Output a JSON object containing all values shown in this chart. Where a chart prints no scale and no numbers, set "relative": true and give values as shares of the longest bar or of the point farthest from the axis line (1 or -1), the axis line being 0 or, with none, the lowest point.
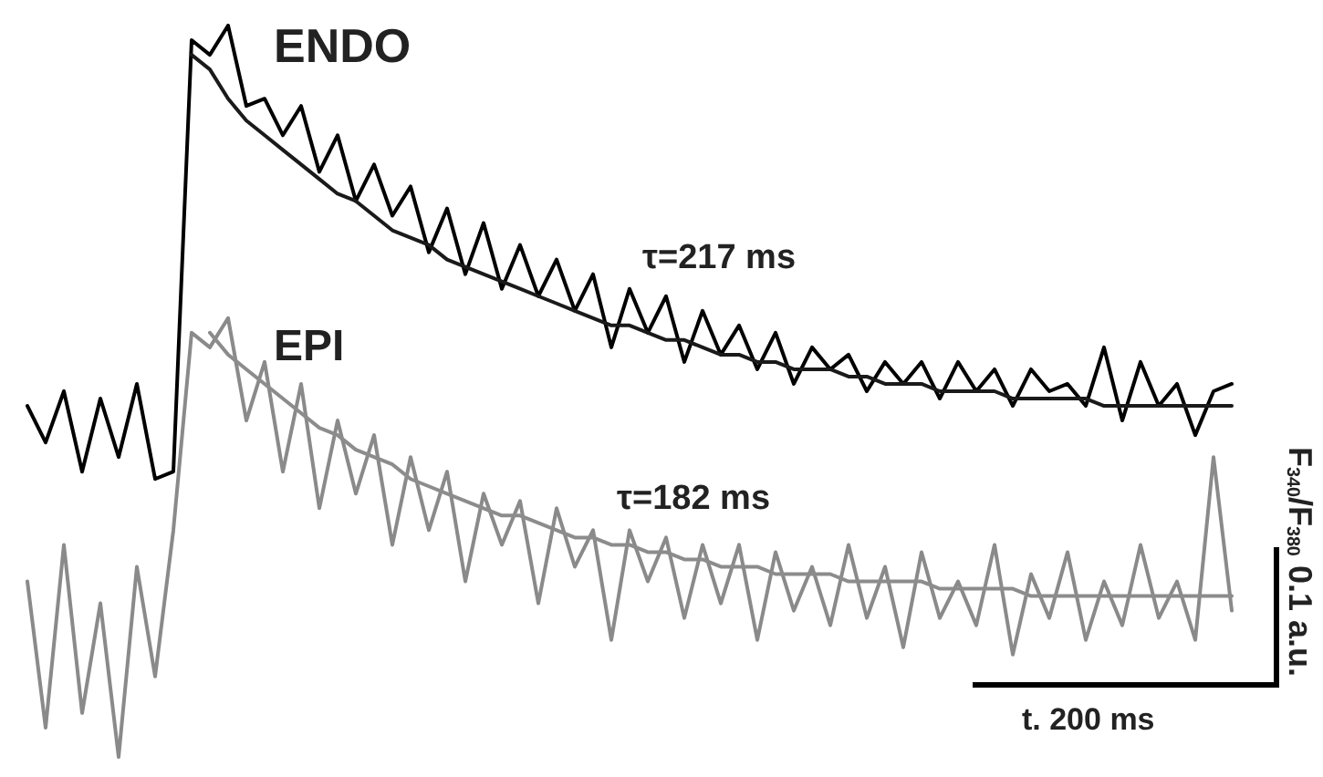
{
  "chart_data": {
    "type": "line",
    "relative": true,
    "marker": "none",
    "line_style": "solid",
    "categories": [
      null,
      null,
      null,
      null,
      null,
      null,
      null,
      null,
      null,
      null,
      null,
      null,
      null,
      null,
      null,
      null,
      null,
      null,
      null,
      null,
      null,
      null,
      null,
      null,
      null,
      null,
      null,
      null,
      null,
      null,
      null,
      null,
      null,
      null,
      null,
      null,
      null,
      null,
      null,
      null,
      null,
      null,
      null,
      null,
      null,
      null,
      null,
      null,
      null,
      null,
      null,
      null,
      null,
      null,
      null,
      null,
      null,
      null,
      null,
      null,
      null,
      null,
      null,
      null,
      null,
      null,
      null
    ],
    "series": [
      {
        "color": "#000000",
        "values": [
          0.48,
          0.43,
          0.5,
          0.39,
          0.49,
          0.41,
          0.51,
          0.38,
          0.39,
          0.98,
          0.96,
          1,
          0.89,
          0.9,
          0.85,
          0.89,
          0.8,
          0.85,
          0.76,
          0.81,
          0.74,
          0.78,
          0.69,
          0.75,
          0.66,
          0.73,
          0.64,
          0.7,
          0.63,
          0.68,
          0.61,
          0.66,
          0.56,
          0.64,
          0.58,
          0.63,
          0.54,
          0.61,
          0.55,
          0.59,
          0.53,
          0.58,
          0.51,
          0.56,
          0.53,
          0.55,
          0.5,
          0.54,
          0.51,
          0.54,
          0.49,
          0.54,
          0.5,
          0.53,
          0.48,
          0.53,
          0.5,
          0.51,
          0.48,
          0.56,
          0.46,
          0.54,
          0.48,
          0.51,
          0.44,
          0.5,
          0.51
        ]
      },
      {
        "color": "#1a1a1a",
        "values": [
          null,
          null,
          null,
          null,
          null,
          null,
          null,
          null,
          null,
          0.96,
          0.94,
          0.9,
          0.87,
          0.85,
          0.83,
          0.81,
          0.79,
          0.77,
          0.76,
          0.74,
          0.72,
          0.71,
          0.7,
          0.68,
          0.67,
          0.66,
          0.65,
          0.64,
          0.63,
          0.62,
          0.61,
          0.6,
          0.59,
          0.59,
          0.58,
          0.57,
          0.57,
          0.56,
          0.55,
          0.55,
          0.54,
          0.54,
          0.53,
          0.53,
          0.53,
          0.52,
          0.52,
          0.51,
          0.51,
          0.51,
          0.5,
          0.5,
          0.5,
          0.5,
          0.49,
          0.49,
          0.49,
          0.49,
          0.49,
          0.48,
          0.48,
          0.48,
          0.48,
          0.48,
          0.48,
          0.48,
          0.48
        ]
      },
      {
        "color": "#8a8a8a",
        "values": [
          0.24,
          0.04,
          0.29,
          0.06,
          0.21,
          0,
          0.26,
          0.11,
          0.31,
          0.58,
          0.56,
          0.6,
          0.46,
          0.54,
          0.39,
          0.51,
          0.34,
          0.46,
          0.36,
          0.44,
          0.29,
          0.41,
          0.31,
          0.39,
          0.24,
          0.36,
          0.29,
          0.35,
          0.21,
          0.34,
          0.26,
          0.31,
          0.16,
          0.31,
          0.24,
          0.3,
          0.19,
          0.29,
          0.21,
          0.29,
          0.16,
          0.28,
          0.2,
          0.26,
          0.18,
          0.29,
          0.19,
          0.26,
          0.15,
          0.28,
          0.19,
          0.24,
          0.18,
          0.29,
          0.14,
          0.25,
          0.19,
          0.28,
          0.16,
          0.24,
          0.18,
          0.29,
          0.19,
          0.24,
          0.16,
          0.41,
          0.2
        ]
      },
      {
        "color": "#8c8c8c",
        "values": [
          null,
          null,
          null,
          null,
          null,
          null,
          null,
          null,
          null,
          null,
          0.58,
          0.55,
          0.53,
          0.51,
          0.49,
          0.47,
          0.45,
          0.44,
          0.42,
          0.41,
          0.4,
          0.38,
          0.37,
          0.36,
          0.35,
          0.34,
          0.33,
          0.33,
          0.32,
          0.31,
          0.3,
          0.3,
          0.29,
          0.29,
          0.28,
          0.28,
          0.27,
          0.27,
          0.26,
          0.26,
          0.26,
          0.25,
          0.25,
          0.25,
          0.25,
          0.24,
          0.24,
          0.24,
          0.24,
          0.24,
          0.23,
          0.23,
          0.23,
          0.23,
          0.23,
          0.22,
          0.22,
          0.22,
          0.22,
          0.22,
          0.22,
          0.22,
          0.22,
          0.22,
          0.22,
          0.22,
          0.22
        ]
      }
    ],
    "annotations": [
      "ENDO",
      "τ=217 ms",
      "EPI",
      "τ=182 ms",
      "F$_{340}$/F$_{380}$ 0.1 a.u.",
      "t. 200 ms"
    ]
  }
}
